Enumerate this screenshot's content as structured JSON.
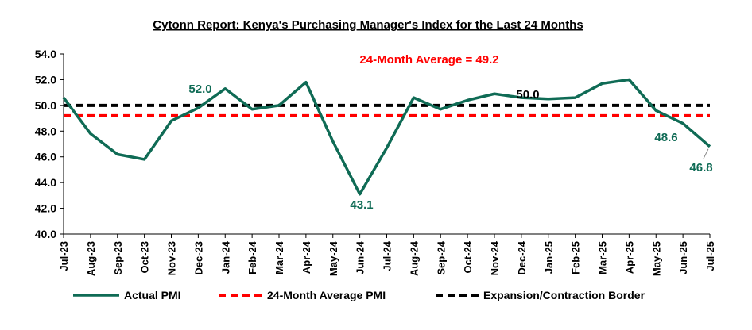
{
  "chart_data": {
    "type": "line",
    "title": "Cytonn Report: Kenya's Purchasing Manager's Index for the Last 24 Months",
    "categories": [
      "Jul-23",
      "Aug-23",
      "Sep-23",
      "Oct-23",
      "Nov-23",
      "Dec-23",
      "Jan-24",
      "Feb-24",
      "Mar-24",
      "Apr-24",
      "May-24",
      "Jun-24",
      "Jul-24",
      "Aug-24",
      "Sep-24",
      "Oct-24",
      "Nov-24",
      "Dec-24",
      "Jan-25",
      "Feb-25",
      "Mar-25",
      "Apr-25",
      "May-25",
      "Jun-25",
      "Jul-25"
    ],
    "ylim": [
      40.0,
      54.0
    ],
    "yticks": [
      "40.0",
      "42.0",
      "44.0",
      "46.0",
      "48.0",
      "50.0",
      "52.0",
      "54.0"
    ],
    "series": [
      {
        "name": "Actual PMI",
        "color": "#0f6b55",
        "style": "solid",
        "values": [
          50.6,
          47.8,
          46.2,
          45.8,
          48.8,
          49.8,
          51.3,
          49.7,
          50.0,
          51.8,
          47.2,
          43.1,
          46.7,
          50.6,
          49.7,
          50.4,
          50.9,
          50.6,
          50.5,
          50.6,
          51.7,
          52.0,
          49.6,
          48.6,
          46.8
        ]
      },
      {
        "name": "24-Month Average PMI",
        "color": "#ff0000",
        "style": "dashed",
        "values": [
          49.2,
          49.2,
          49.2,
          49.2,
          49.2,
          49.2,
          49.2,
          49.2,
          49.2,
          49.2,
          49.2,
          49.2,
          49.2,
          49.2,
          49.2,
          49.2,
          49.2,
          49.2,
          49.2,
          49.2,
          49.2,
          49.2,
          49.2,
          49.2,
          49.2
        ]
      },
      {
        "name": "Expansion/Contraction Border",
        "color": "#000000",
        "style": "dashed",
        "values": [
          50.0,
          50.0,
          50.0,
          50.0,
          50.0,
          50.0,
          50.0,
          50.0,
          50.0,
          50.0,
          50.0,
          50.0,
          50.0,
          50.0,
          50.0,
          50.0,
          50.0,
          50.0,
          50.0,
          50.0,
          50.0,
          50.0,
          50.0,
          50.0,
          50.0
        ]
      }
    ],
    "annotations": [
      {
        "text": "24-Month Average = 49.2",
        "color": "#ff0000"
      },
      {
        "text": "52.0",
        "color": "#0f6b55"
      },
      {
        "text": "43.1",
        "color": "#0f6b55"
      },
      {
        "text": "50.0",
        "color": "#000000"
      },
      {
        "text": "48.6",
        "color": "#0f6b55"
      },
      {
        "text": "46.8",
        "color": "#0f6b55"
      }
    ],
    "grid": false,
    "legend_position": "bottom"
  }
}
